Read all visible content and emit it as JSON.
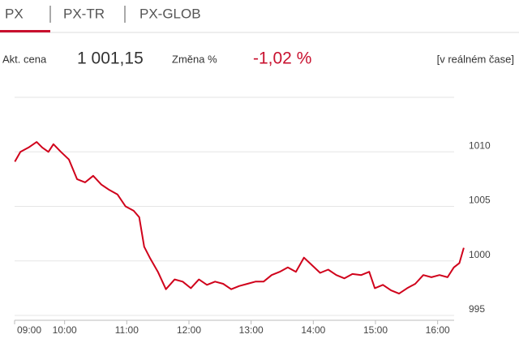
{
  "tabs": [
    "PX",
    "PX-TR",
    "PX-GLOB"
  ],
  "quote": {
    "price_label": "Akt. cena",
    "price": "1 001,15",
    "change_label": "Změna %",
    "change": "-1,02 %",
    "mode": "[v reálném čase]"
  },
  "chart_data": {
    "type": "line",
    "color": "#d0021b",
    "x": [
      9.2,
      9.29,
      9.42,
      9.55,
      9.64,
      9.74,
      9.82,
      9.94,
      10.07,
      10.2,
      10.33,
      10.46,
      10.59,
      10.72,
      10.85,
      10.98,
      11.11,
      11.2,
      11.28,
      11.37,
      11.5,
      11.63,
      11.77,
      11.9,
      12.03,
      12.16,
      12.29,
      12.42,
      12.55,
      12.68,
      12.81,
      12.94,
      13.07,
      13.2,
      13.33,
      13.46,
      13.59,
      13.72,
      13.85,
      13.98,
      14.11,
      14.24,
      14.37,
      14.5,
      14.63,
      14.77,
      14.9,
      14.99,
      15.12,
      15.25,
      15.38,
      15.51,
      15.64,
      15.77,
      15.9,
      16.03,
      16.16,
      16.26,
      16.35,
      16.42
    ],
    "values": [
      1009.1,
      1010,
      1010.4,
      1010.9,
      1010.4,
      1010,
      1010.7,
      1010,
      1009.3,
      1007.5,
      1007.2,
      1007.8,
      1007,
      1006.5,
      1006.1,
      1005,
      1004.6,
      1004,
      1001.3,
      1000.3,
      999,
      997.4,
      998.3,
      998.1,
      997.5,
      998.3,
      997.8,
      998.1,
      997.9,
      997.4,
      997.7,
      997.9,
      998.1,
      998.1,
      998.7,
      999,
      999.4,
      999,
      1000.3,
      999.6,
      998.9,
      999.2,
      998.7,
      998.4,
      998.8,
      998.7,
      999,
      997.5,
      997.8,
      997.3,
      997,
      997.5,
      997.9,
      998.7,
      998.5,
      998.7,
      998.5,
      999.4,
      999.8,
      1001.2
    ],
    "xlim": [
      9,
      16.5
    ],
    "ylim": [
      995,
      1015
    ],
    "xticks": [
      {
        "value": 9,
        "label": "09:00"
      },
      {
        "value": 10,
        "label": "10:00"
      },
      {
        "value": 11,
        "label": "11:00"
      },
      {
        "value": 12,
        "label": "12:00"
      },
      {
        "value": 13,
        "label": "13:00"
      },
      {
        "value": 14,
        "label": "14:00"
      },
      {
        "value": 15,
        "label": "15:00"
      },
      {
        "value": 16,
        "label": "16:00"
      }
    ],
    "yticks": [
      995,
      1000,
      1005,
      1010
    ],
    "grid": true
  }
}
